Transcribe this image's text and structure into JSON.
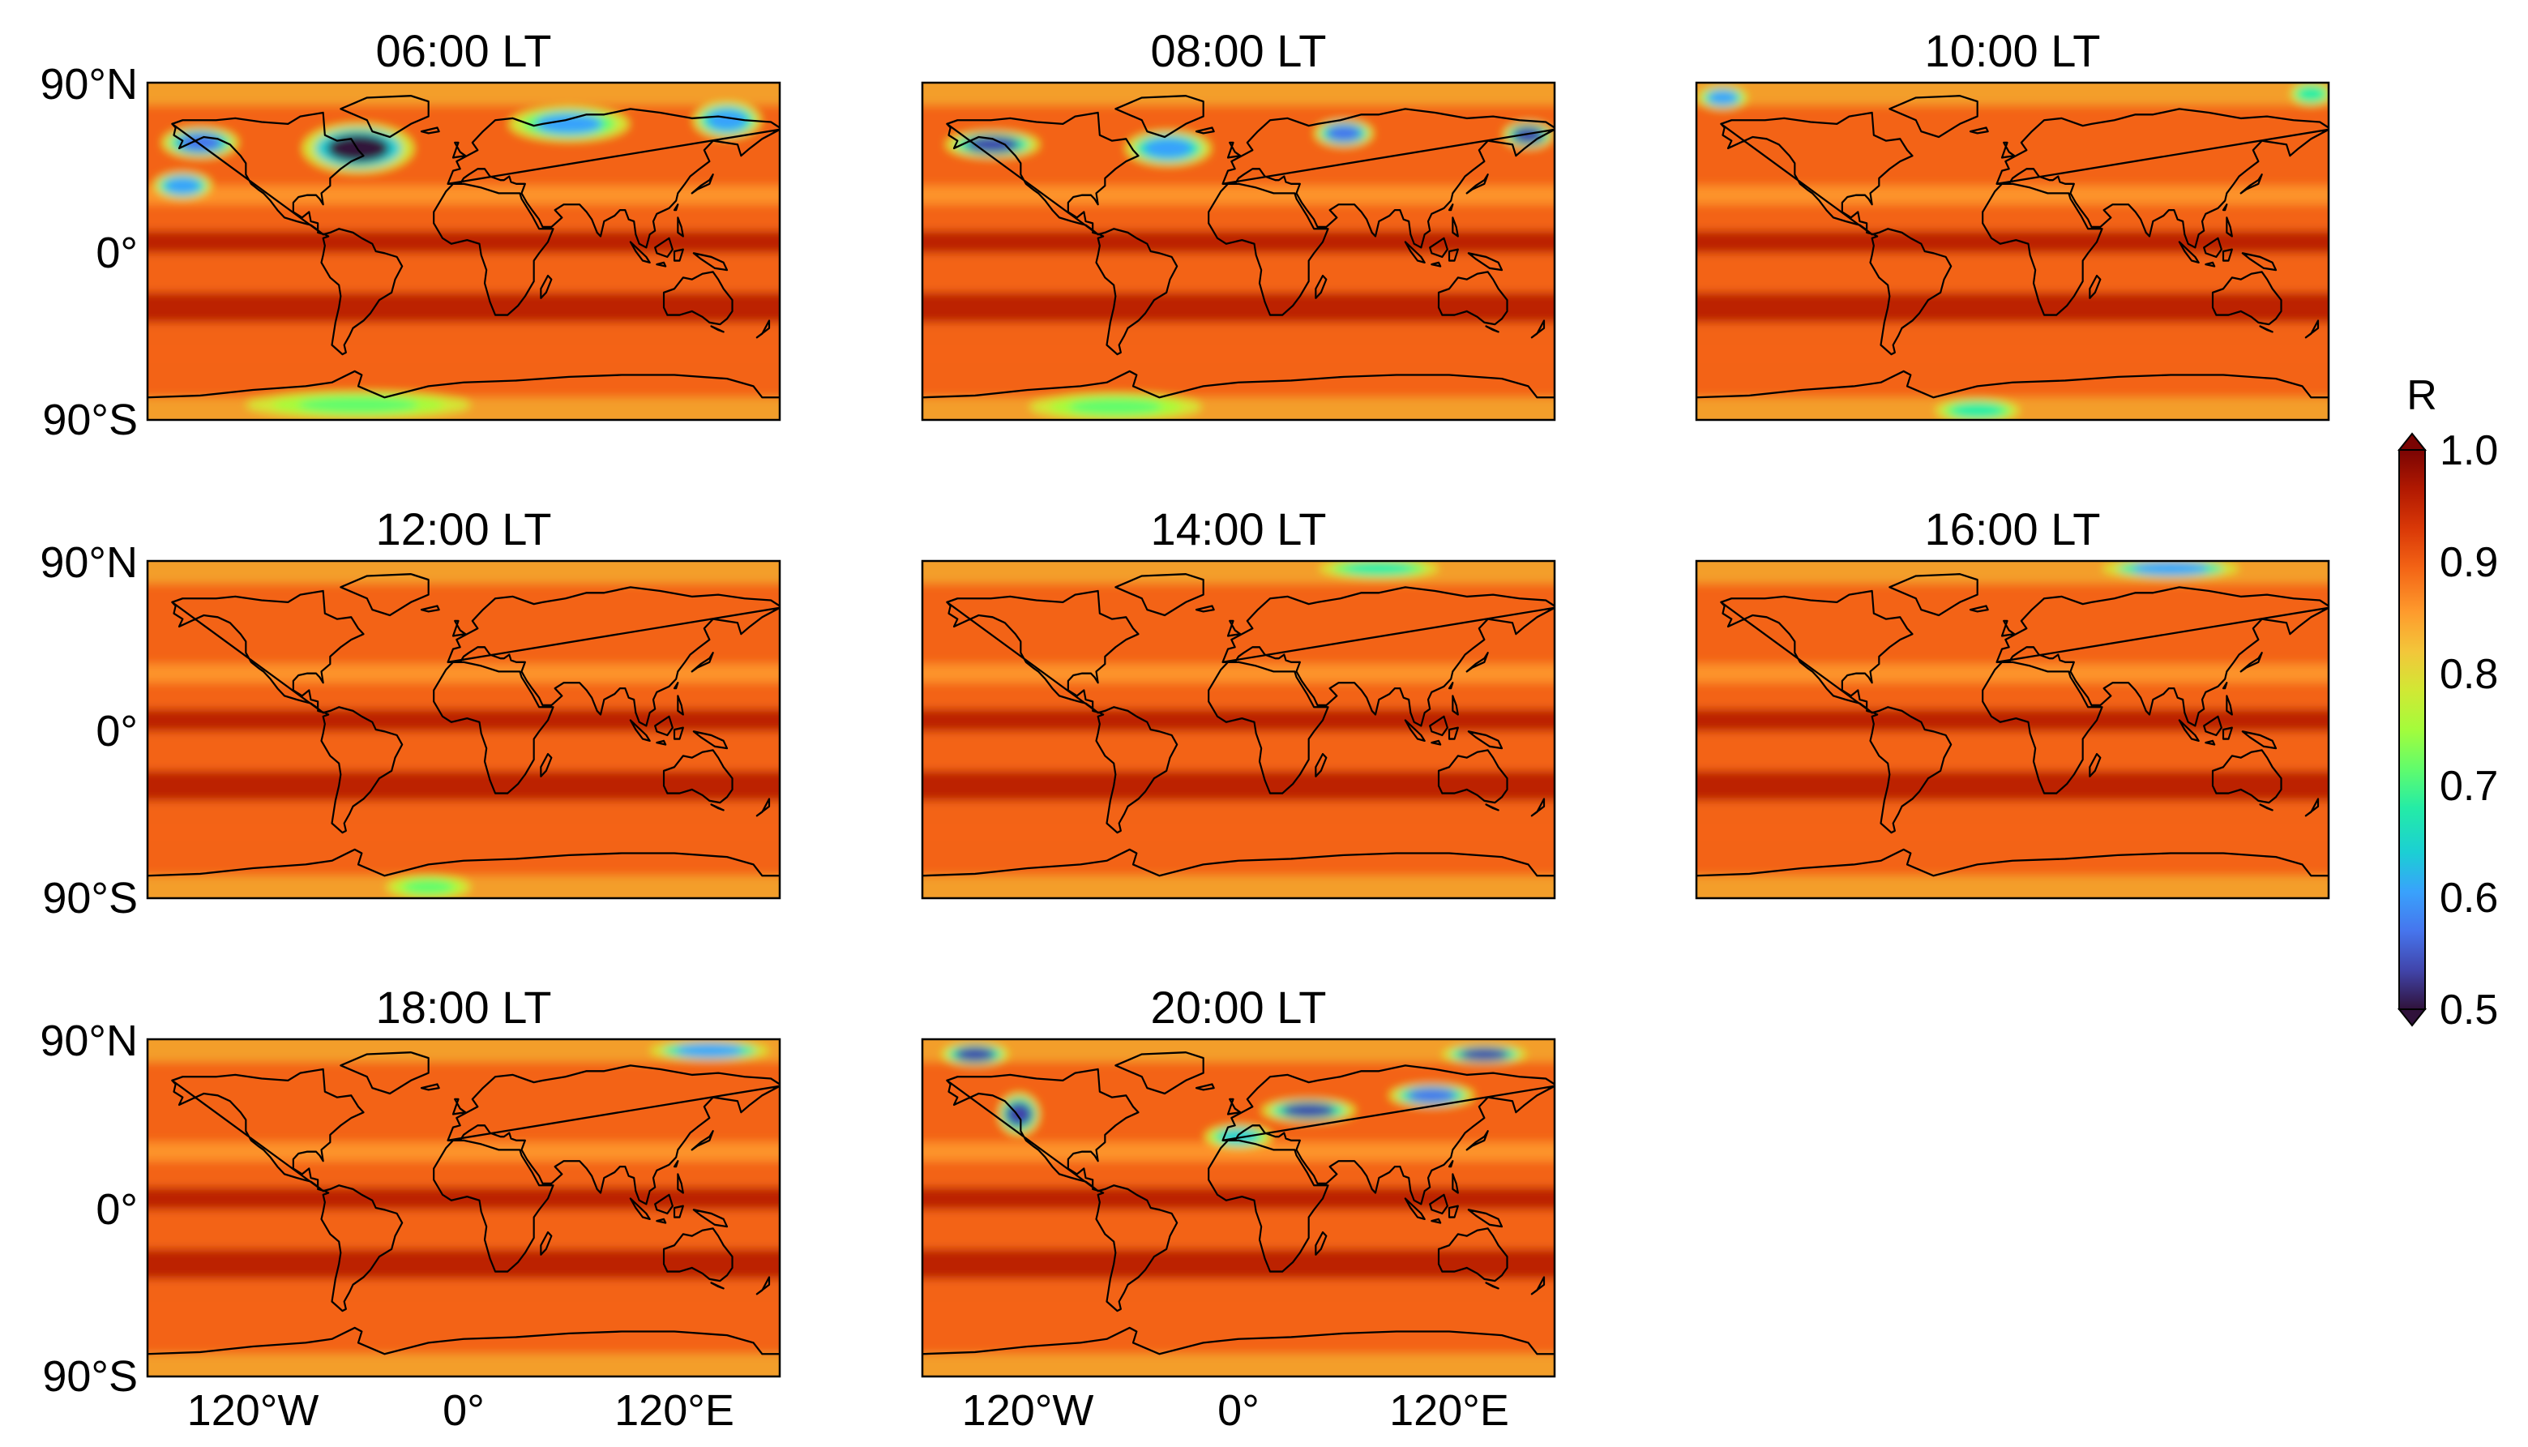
{
  "figure": {
    "type": "map-panels",
    "variable": "R",
    "panels": [
      {
        "title": "06:00 LT",
        "low_zones": [
          {
            "lat": 55,
            "lat_width": 22,
            "lon": -60,
            "lon_width": 55,
            "value": 0.5
          },
          {
            "lat": 58,
            "lat_width": 12,
            "lon": -150,
            "lon_width": 35,
            "value": 0.58
          },
          {
            "lat": 68,
            "lat_width": 14,
            "lon": 60,
            "lon_width": 60,
            "value": 0.62
          },
          {
            "lat": 70,
            "lat_width": 15,
            "lon": 150,
            "lon_width": 30,
            "value": 0.6
          },
          {
            "lat": 35,
            "lat_width": 10,
            "lon": -160,
            "lon_width": 25,
            "value": 0.6
          },
          {
            "lat": -82,
            "lat_width": 10,
            "lon": -60,
            "lon_width": 120,
            "value": 0.7
          }
        ]
      },
      {
        "title": "08:00 LT",
        "low_zones": [
          {
            "lat": 57,
            "lat_width": 10,
            "lon": -140,
            "lon_width": 45,
            "value": 0.55
          },
          {
            "lat": 55,
            "lat_width": 14,
            "lon": -40,
            "lon_width": 40,
            "value": 0.6
          },
          {
            "lat": 63,
            "lat_width": 10,
            "lon": 60,
            "lon_width": 25,
            "value": 0.58
          },
          {
            "lat": 62,
            "lat_width": 10,
            "lon": 165,
            "lon_width": 20,
            "value": 0.55
          },
          {
            "lat": -83,
            "lat_width": 10,
            "lon": -70,
            "lon_width": 90,
            "value": 0.72
          }
        ]
      },
      {
        "title": "10:00 LT",
        "low_zones": [
          {
            "lat": 82,
            "lat_width": 8,
            "lon": -165,
            "lon_width": 20,
            "value": 0.62
          },
          {
            "lat": 84,
            "lat_width": 8,
            "lon": 170,
            "lon_width": 15,
            "value": 0.68
          },
          {
            "lat": -85,
            "lat_width": 8,
            "lon": -20,
            "lon_width": 40,
            "value": 0.68
          }
        ]
      },
      {
        "title": "12:00 LT",
        "low_zones": [
          {
            "lat": -84,
            "lat_width": 8,
            "lon": -20,
            "lon_width": 40,
            "value": 0.7
          }
        ]
      },
      {
        "title": "14:00 LT",
        "low_zones": [
          {
            "lat": 86,
            "lat_width": 6,
            "lon": 80,
            "lon_width": 60,
            "value": 0.68
          }
        ]
      },
      {
        "title": "16:00 LT",
        "low_zones": [
          {
            "lat": 86,
            "lat_width": 6,
            "lon": 90,
            "lon_width": 70,
            "value": 0.6
          }
        ]
      },
      {
        "title": "18:00 LT",
        "low_zones": [
          {
            "lat": 84,
            "lat_width": 6,
            "lon": 140,
            "lon_width": 60,
            "value": 0.6
          }
        ]
      },
      {
        "title": "20:00 LT",
        "low_zones": [
          {
            "lat": 82,
            "lat_width": 8,
            "lon": -150,
            "lon_width": 30,
            "value": 0.55
          },
          {
            "lat": 50,
            "lat_width": 18,
            "lon": -125,
            "lon_width": 15,
            "value": 0.55
          },
          {
            "lat": 52,
            "lat_width": 8,
            "lon": 40,
            "lon_width": 45,
            "value": 0.55
          },
          {
            "lat": 60,
            "lat_width": 8,
            "lon": 110,
            "lon_width": 40,
            "value": 0.58
          },
          {
            "lat": 82,
            "lat_width": 6,
            "lon": 140,
            "lon_width": 40,
            "value": 0.55
          },
          {
            "lat": 38,
            "lat_width": 8,
            "lon": 0,
            "lon_width": 30,
            "value": 0.65
          }
        ]
      }
    ],
    "y_ticks": [
      "90°N",
      "0°",
      "90°S"
    ],
    "x_ticks": [
      "120°W",
      "0°",
      "120°E"
    ],
    "x_tick_values": [
      -120,
      0,
      120
    ],
    "colorbar": {
      "label": "R",
      "ticks": [
        "1.0",
        "0.9",
        "0.8",
        "0.7",
        "0.6",
        "0.5"
      ],
      "range": [
        0.5,
        1.0
      ],
      "colors": [
        "#30123b",
        "#4145ab",
        "#4675ed",
        "#39a2fc",
        "#1bcfd4",
        "#24eca6",
        "#61fc6c",
        "#a4fc3b",
        "#d1e834",
        "#f3c63a",
        "#fe9b2d",
        "#f36315",
        "#d93807",
        "#b11901",
        "#7a0403"
      ]
    }
  }
}
